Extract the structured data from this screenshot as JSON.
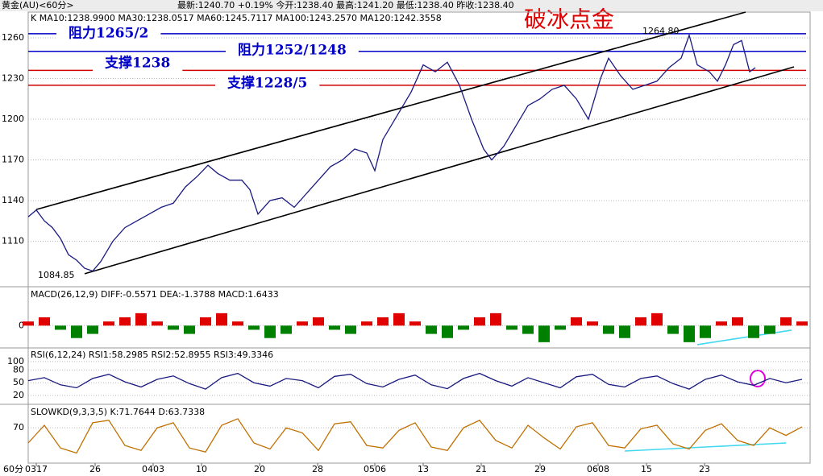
{
  "header": {
    "symbol": "黄金(AU)<60分>",
    "quote": "最新:1240.70 +0.19% 今开:1238.40 最高:1241.20 最低:1238.40 昨收:1238.40",
    "period": "60分"
  },
  "chart_data": [
    {
      "type": "line",
      "title": "破冰点金",
      "legend_text": "K  MA10:1238.9900 MA30:1238.0517 MA60:1245.7117 MA100:1243.2570 MA120:1242.3558",
      "xlim": [
        0,
        97
      ],
      "xticks": [
        {
          "value": 1,
          "label": "0317"
        },
        {
          "value": 8.3,
          "label": "26"
        },
        {
          "value": 15.5,
          "label": "0403"
        },
        {
          "value": 21.5,
          "label": "10"
        },
        {
          "value": 28.7,
          "label": "20"
        },
        {
          "value": 35.9,
          "label": "28"
        },
        {
          "value": 43,
          "label": "0506"
        },
        {
          "value": 49,
          "label": "13"
        },
        {
          "value": 56.2,
          "label": "21"
        },
        {
          "value": 63.5,
          "label": "29"
        },
        {
          "value": 70.7,
          "label": "0608"
        },
        {
          "value": 76.7,
          "label": "15"
        },
        {
          "value": 83.9,
          "label": "23"
        }
      ],
      "ylim": [
        1077,
        1279
      ],
      "yticks": [
        1110,
        1140,
        1170,
        1200,
        1230,
        1260
      ],
      "grid": true,
      "x": [
        0,
        1,
        2,
        3,
        4,
        5,
        6,
        7,
        8,
        9,
        10.5,
        12,
        13.5,
        15,
        16.5,
        18,
        19.5,
        21,
        22.3,
        23.5,
        25,
        26.5,
        27.5,
        28.5,
        30,
        31.5,
        33,
        34.5,
        36,
        37.5,
        39,
        40.5,
        42,
        43,
        44,
        45,
        46,
        47.5,
        49,
        50.5,
        52,
        53.5,
        55,
        56.5,
        57.5,
        59,
        60.5,
        62,
        63.5,
        65,
        66.5,
        68,
        69.5,
        71,
        72,
        73.5,
        75,
        76.5,
        78,
        79.5,
        81,
        82,
        83,
        84.5,
        85.5,
        86.5,
        87.5,
        88.5,
        89.5,
        90.2
      ],
      "series": [
        {
          "color": "#1a1a80",
          "values": [
            1128,
            1133,
            1125,
            1120,
            1112,
            1100,
            1096,
            1090,
            1088,
            1095,
            1110,
            1120,
            1125,
            1130,
            1135,
            1138,
            1150,
            1158,
            1166,
            1160,
            1155,
            1155,
            1148,
            1130,
            1140,
            1142,
            1135,
            1145,
            1155,
            1165,
            1170,
            1178,
            1175,
            1162,
            1185,
            1195,
            1205,
            1220,
            1240,
            1235,
            1242,
            1225,
            1200,
            1178,
            1170,
            1180,
            1195,
            1210,
            1215,
            1222,
            1225,
            1215,
            1200,
            1230,
            1245,
            1232,
            1222,
            1225,
            1228,
            1238,
            1245,
            1262,
            1240,
            1235,
            1228,
            1240,
            1255,
            1258,
            1235,
            1238
          ]
        }
      ],
      "levels": [
        {
          "value": 1263,
          "label": "阻力1265/2",
          "color": "#0000c8"
        },
        {
          "value": 1250,
          "label": "阻力1252/1248",
          "color": "#0000c8"
        },
        {
          "value": 1236,
          "label": "支撑1238",
          "color": "#d00000"
        },
        {
          "value": 1225,
          "label": "支撑1228/5",
          "color": "#d00000"
        }
      ],
      "trendlines": [
        {
          "x": [
            7,
            95
          ],
          "values": [
            1086,
            1238.6
          ]
        },
        {
          "x": [
            1,
            89
          ],
          "values": [
            1133.4,
            1279
          ]
        }
      ],
      "annotations": [
        {
          "x": 76.2,
          "value": 1264.8,
          "label": "1264.80"
        },
        {
          "x": 1.2,
          "value": 1084.85,
          "label": "1084.85"
        }
      ]
    },
    {
      "type": "histogram-bar",
      "legend_text": "MACD(26,12,9) DIFF:-0.5571 DEA:-1.3788 MACD:1.6433",
      "ylim": [
        -5,
        9
      ],
      "yticks": [
        0
      ],
      "x": [
        0,
        2,
        4,
        6,
        8,
        10,
        12,
        14,
        16,
        18,
        20,
        22,
        24,
        26,
        28,
        30,
        32,
        34,
        36,
        38,
        40,
        42,
        44,
        46,
        48,
        50,
        52,
        54,
        56,
        58,
        60,
        62,
        64,
        66,
        68,
        70,
        72,
        74,
        76,
        78,
        80,
        82,
        84,
        86,
        88,
        90,
        92,
        94,
        96
      ],
      "values": [
        1,
        2,
        -1,
        -3,
        -2,
        1,
        2,
        3,
        1,
        -1,
        -2,
        2,
        3,
        1,
        -1,
        -3,
        -2,
        1,
        2,
        -1,
        -2,
        1,
        2,
        3,
        1,
        -2,
        -3,
        -1,
        2,
        3,
        -1,
        -2,
        -4,
        -1,
        2,
        1,
        -2,
        -3,
        2,
        3,
        -2,
        -4,
        -3,
        1,
        2,
        -3,
        -2,
        2,
        1
      ],
      "colors": {
        "up": "#e00000",
        "down": "#008000"
      },
      "trendlines": [
        {
          "x": [
            83,
            94.7
          ],
          "values": [
            -4.6,
            -1.1
          ],
          "color": "#40d8f0"
        }
      ]
    },
    {
      "type": "line",
      "legend_text": "RSI(6,12,24) RSI1:58.2985 RSI2:52.8955 RSI3:49.3346",
      "ylim": [
        3,
        130
      ],
      "yticks": [
        20,
        50,
        80,
        100
      ],
      "grid": true,
      "x": [
        0,
        2,
        4,
        6,
        8,
        10,
        12,
        14,
        16,
        18,
        20,
        22,
        24,
        26,
        28,
        30,
        32,
        34,
        36,
        38,
        40,
        42,
        44,
        46,
        48,
        50,
        52,
        54,
        56,
        58,
        60,
        62,
        64,
        66,
        68,
        70,
        72,
        74,
        76,
        78,
        80,
        82,
        84,
        86,
        88,
        90,
        92,
        94,
        96
      ],
      "series": [
        {
          "color": "#1a1a80",
          "values": [
            55,
            62,
            45,
            38,
            60,
            70,
            52,
            40,
            58,
            66,
            48,
            35,
            62,
            72,
            50,
            42,
            60,
            55,
            38,
            65,
            70,
            48,
            40,
            58,
            68,
            45,
            36,
            60,
            72,
            55,
            42,
            62,
            50,
            38,
            64,
            70,
            46,
            40,
            60,
            66,
            48,
            35,
            58,
            68,
            52,
            44,
            60,
            50,
            58
          ]
        }
      ]
    },
    {
      "type": "line",
      "legend_text": "SLOWKD(9,3,3,5) K:71.7644 D:63.7338",
      "ylim": [
        0,
        115
      ],
      "yticks": [
        70
      ],
      "grid": true,
      "x": [
        0,
        2,
        4,
        6,
        8,
        10,
        12,
        14,
        16,
        18,
        20,
        22,
        24,
        26,
        28,
        30,
        32,
        34,
        36,
        38,
        40,
        42,
        44,
        46,
        48,
        50,
        52,
        54,
        56,
        58,
        60,
        62,
        64,
        66,
        68,
        70,
        72,
        74,
        76,
        78,
        80,
        82,
        84,
        86,
        88,
        90,
        92,
        94,
        96
      ],
      "series": [
        {
          "color": "#c07000",
          "values": [
            40,
            75,
            30,
            20,
            80,
            85,
            35,
            25,
            70,
            80,
            30,
            22,
            75,
            88,
            40,
            28,
            70,
            60,
            25,
            78,
            82,
            35,
            30,
            65,
            80,
            32,
            25,
            70,
            85,
            45,
            30,
            75,
            50,
            28,
            72,
            80,
            35,
            30,
            68,
            75,
            38,
            28,
            65,
            78,
            45,
            35,
            70,
            55,
            72
          ]
        }
      ],
      "trendlines": [
        {
          "x": [
            74,
            94
          ],
          "values": [
            24,
            40
          ],
          "color": "#40d8f0"
        }
      ]
    }
  ]
}
